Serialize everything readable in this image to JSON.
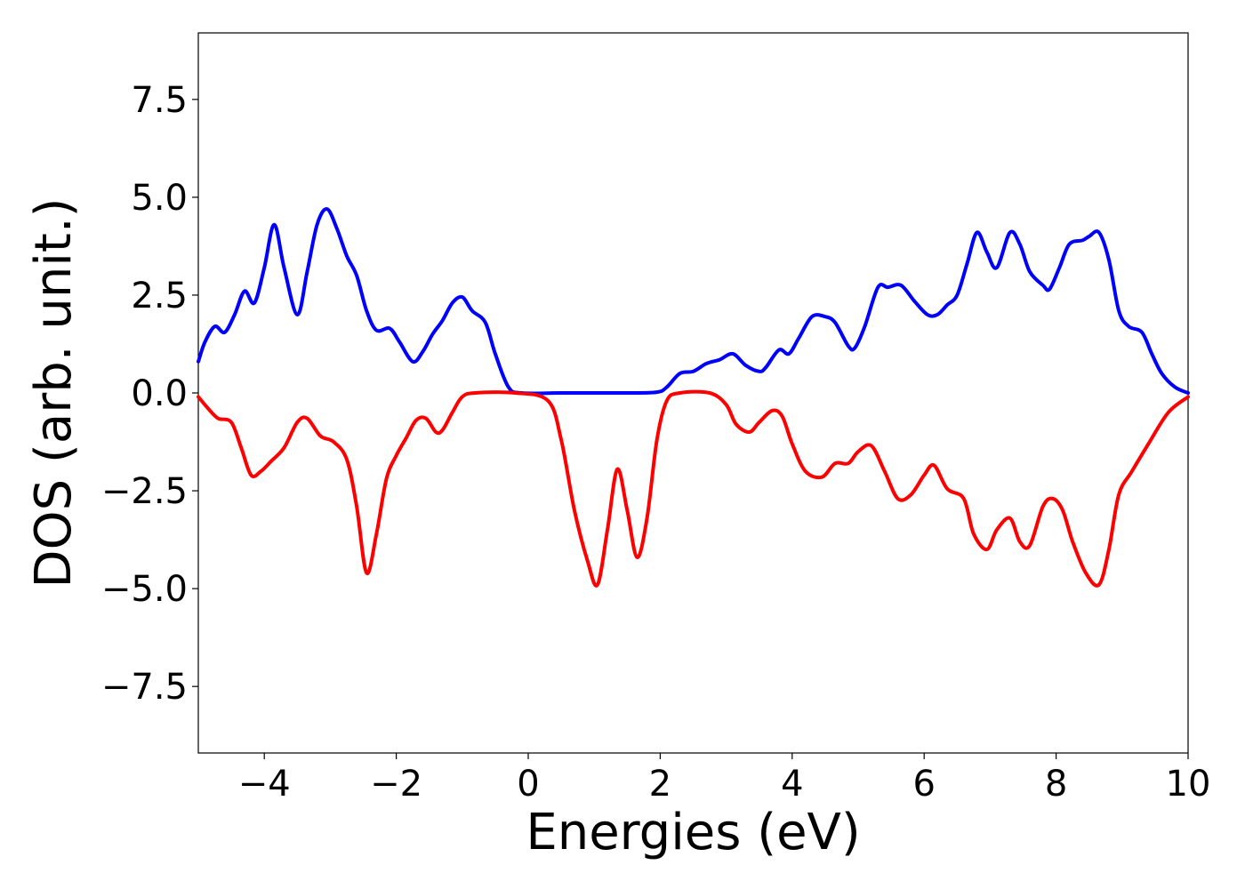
{
  "chart_data": {
    "type": "line",
    "title": "",
    "xlabel": "Energies (eV)",
    "ylabel": "DOS (arb. unit.)",
    "xlim": [
      -5,
      10
    ],
    "ylim": [
      -9.2,
      9.2
    ],
    "xticks": [
      {
        "value": -4,
        "label": "−4"
      },
      {
        "value": -2,
        "label": "−2"
      },
      {
        "value": 0,
        "label": "0"
      },
      {
        "value": 2,
        "label": "2"
      },
      {
        "value": 4,
        "label": "4"
      },
      {
        "value": 6,
        "label": "6"
      },
      {
        "value": 8,
        "label": "8"
      },
      {
        "value": 10,
        "label": "10"
      }
    ],
    "yticks": [
      {
        "value": 7.5,
        "label": "7.5"
      },
      {
        "value": 5.0,
        "label": "5.0"
      },
      {
        "value": 2.5,
        "label": "2.5"
      },
      {
        "value": 0.0,
        "label": "0.0"
      },
      {
        "value": -2.5,
        "label": "−2.5"
      },
      {
        "value": -5.0,
        "label": "−5.0"
      },
      {
        "value": -7.5,
        "label": "−7.5"
      }
    ],
    "grid": false,
    "legend": "none",
    "series": [
      {
        "color": "#0000ff",
        "points": [
          [
            -5.0,
            0.8
          ],
          [
            -4.9,
            1.3
          ],
          [
            -4.75,
            1.7
          ],
          [
            -4.6,
            1.55
          ],
          [
            -4.45,
            2.0
          ],
          [
            -4.3,
            2.6
          ],
          [
            -4.15,
            2.3
          ],
          [
            -4.0,
            3.2
          ],
          [
            -3.85,
            4.3
          ],
          [
            -3.7,
            3.2
          ],
          [
            -3.5,
            2.0
          ],
          [
            -3.35,
            3.1
          ],
          [
            -3.2,
            4.3
          ],
          [
            -3.05,
            4.7
          ],
          [
            -2.9,
            4.2
          ],
          [
            -2.75,
            3.5
          ],
          [
            -2.6,
            3.0
          ],
          [
            -2.45,
            2.1
          ],
          [
            -2.3,
            1.6
          ],
          [
            -2.1,
            1.65
          ],
          [
            -1.95,
            1.3
          ],
          [
            -1.75,
            0.8
          ],
          [
            -1.6,
            1.05
          ],
          [
            -1.45,
            1.5
          ],
          [
            -1.3,
            1.85
          ],
          [
            -1.15,
            2.3
          ],
          [
            -1.0,
            2.45
          ],
          [
            -0.85,
            2.1
          ],
          [
            -0.65,
            1.8
          ],
          [
            -0.5,
            1.0
          ],
          [
            -0.3,
            0.15
          ],
          [
            -0.1,
            0.0
          ],
          [
            0.5,
            0.0
          ],
          [
            1.0,
            0.0
          ],
          [
            1.5,
            0.0
          ],
          [
            1.95,
            0.02
          ],
          [
            2.1,
            0.15
          ],
          [
            2.3,
            0.5
          ],
          [
            2.5,
            0.55
          ],
          [
            2.7,
            0.75
          ],
          [
            2.9,
            0.85
          ],
          [
            3.1,
            1.0
          ],
          [
            3.3,
            0.7
          ],
          [
            3.5,
            0.55
          ],
          [
            3.6,
            0.65
          ],
          [
            3.8,
            1.1
          ],
          [
            3.95,
            1.0
          ],
          [
            4.1,
            1.4
          ],
          [
            4.3,
            1.95
          ],
          [
            4.5,
            1.95
          ],
          [
            4.65,
            1.8
          ],
          [
            4.85,
            1.2
          ],
          [
            4.95,
            1.15
          ],
          [
            5.1,
            1.7
          ],
          [
            5.3,
            2.7
          ],
          [
            5.45,
            2.7
          ],
          [
            5.65,
            2.75
          ],
          [
            5.85,
            2.35
          ],
          [
            6.05,
            2.0
          ],
          [
            6.2,
            2.0
          ],
          [
            6.35,
            2.25
          ],
          [
            6.5,
            2.5
          ],
          [
            6.65,
            3.3
          ],
          [
            6.8,
            4.1
          ],
          [
            6.95,
            3.6
          ],
          [
            7.1,
            3.2
          ],
          [
            7.3,
            4.1
          ],
          [
            7.45,
            3.8
          ],
          [
            7.6,
            3.1
          ],
          [
            7.8,
            2.75
          ],
          [
            7.9,
            2.65
          ],
          [
            8.05,
            3.2
          ],
          [
            8.2,
            3.8
          ],
          [
            8.4,
            3.9
          ],
          [
            8.5,
            4.0
          ],
          [
            8.65,
            4.1
          ],
          [
            8.8,
            3.4
          ],
          [
            8.95,
            2.1
          ],
          [
            9.1,
            1.7
          ],
          [
            9.3,
            1.55
          ],
          [
            9.45,
            1.0
          ],
          [
            9.6,
            0.5
          ],
          [
            9.8,
            0.15
          ],
          [
            10.0,
            0.0
          ]
        ]
      },
      {
        "color": "#ff0000",
        "points": [
          [
            -5.0,
            -0.1
          ],
          [
            -4.85,
            -0.4
          ],
          [
            -4.7,
            -0.65
          ],
          [
            -4.5,
            -0.75
          ],
          [
            -4.35,
            -1.4
          ],
          [
            -4.2,
            -2.1
          ],
          [
            -4.05,
            -2.0
          ],
          [
            -3.9,
            -1.75
          ],
          [
            -3.7,
            -1.4
          ],
          [
            -3.5,
            -0.75
          ],
          [
            -3.35,
            -0.65
          ],
          [
            -3.15,
            -1.1
          ],
          [
            -2.95,
            -1.25
          ],
          [
            -2.75,
            -1.7
          ],
          [
            -2.6,
            -2.9
          ],
          [
            -2.45,
            -4.6
          ],
          [
            -2.3,
            -3.6
          ],
          [
            -2.15,
            -2.2
          ],
          [
            -2.0,
            -1.6
          ],
          [
            -1.85,
            -1.15
          ],
          [
            -1.7,
            -0.7
          ],
          [
            -1.55,
            -0.65
          ],
          [
            -1.4,
            -1.0
          ],
          [
            -1.3,
            -0.95
          ],
          [
            -1.15,
            -0.5
          ],
          [
            -1.0,
            -0.1
          ],
          [
            -0.8,
            -0.0
          ],
          [
            -0.2,
            0.0
          ],
          [
            0.3,
            -0.2
          ],
          [
            0.5,
            -1.2
          ],
          [
            0.7,
            -3.0
          ],
          [
            0.9,
            -4.3
          ],
          [
            1.05,
            -4.9
          ],
          [
            1.2,
            -3.5
          ],
          [
            1.35,
            -1.95
          ],
          [
            1.5,
            -3.0
          ],
          [
            1.65,
            -4.2
          ],
          [
            1.8,
            -3.2
          ],
          [
            1.95,
            -1.2
          ],
          [
            2.1,
            -0.2
          ],
          [
            2.3,
            0.0
          ],
          [
            2.75,
            0.0
          ],
          [
            3.0,
            -0.3
          ],
          [
            3.15,
            -0.8
          ],
          [
            3.35,
            -1.0
          ],
          [
            3.5,
            -0.75
          ],
          [
            3.7,
            -0.45
          ],
          [
            3.85,
            -0.6
          ],
          [
            4.0,
            -1.3
          ],
          [
            4.2,
            -2.0
          ],
          [
            4.45,
            -2.15
          ],
          [
            4.65,
            -1.8
          ],
          [
            4.85,
            -1.8
          ],
          [
            5.0,
            -1.5
          ],
          [
            5.2,
            -1.35
          ],
          [
            5.4,
            -2.0
          ],
          [
            5.6,
            -2.7
          ],
          [
            5.8,
            -2.6
          ],
          [
            6.0,
            -2.1
          ],
          [
            6.15,
            -1.85
          ],
          [
            6.35,
            -2.45
          ],
          [
            6.6,
            -2.7
          ],
          [
            6.75,
            -3.6
          ],
          [
            6.95,
            -4.0
          ],
          [
            7.1,
            -3.5
          ],
          [
            7.3,
            -3.2
          ],
          [
            7.45,
            -3.8
          ],
          [
            7.6,
            -3.9
          ],
          [
            7.8,
            -2.9
          ],
          [
            7.95,
            -2.7
          ],
          [
            8.1,
            -3.0
          ],
          [
            8.25,
            -3.8
          ],
          [
            8.45,
            -4.6
          ],
          [
            8.65,
            -4.9
          ],
          [
            8.8,
            -4.0
          ],
          [
            8.95,
            -2.6
          ],
          [
            9.15,
            -2.0
          ],
          [
            9.4,
            -1.3
          ],
          [
            9.7,
            -0.5
          ],
          [
            10.0,
            -0.1
          ]
        ]
      }
    ]
  }
}
